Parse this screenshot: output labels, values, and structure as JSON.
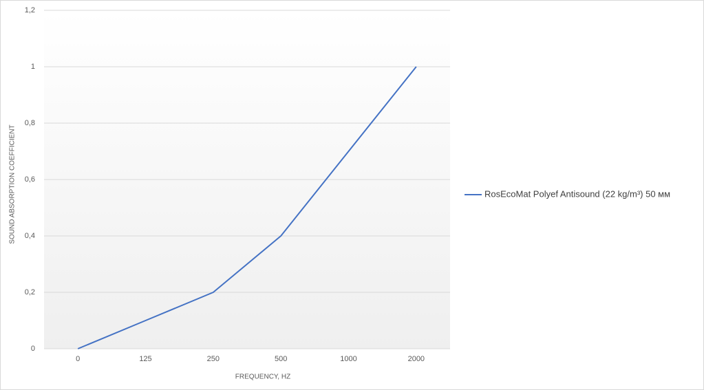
{
  "chart_data": {
    "type": "line",
    "x_label": "FREQUENCY, HZ",
    "y_label": "SOUND ABSORPTION COEFFICIENT",
    "categories": [
      "0",
      "125",
      "250",
      "500",
      "1000",
      "2000"
    ],
    "series": [
      {
        "name": "RosEcoMat Polyef Antisound (22 kg/m³) 50 мм",
        "color": "#4472c4",
        "values": [
          0,
          0.1,
          0.2,
          0.4,
          0.7,
          1
        ]
      }
    ],
    "ylim": [
      0,
      1.2
    ],
    "yticks": [
      0,
      {
        "value": 0.2,
        "label": "0,2"
      },
      {
        "value": 0.4,
        "label": "0,4"
      },
      {
        "value": 0.6,
        "label": "0,6"
      },
      {
        "value": 0.8,
        "label": "0,8"
      },
      1,
      {
        "value": 1.2,
        "label": "1,2"
      }
    ],
    "grid": true,
    "legend": "right"
  }
}
